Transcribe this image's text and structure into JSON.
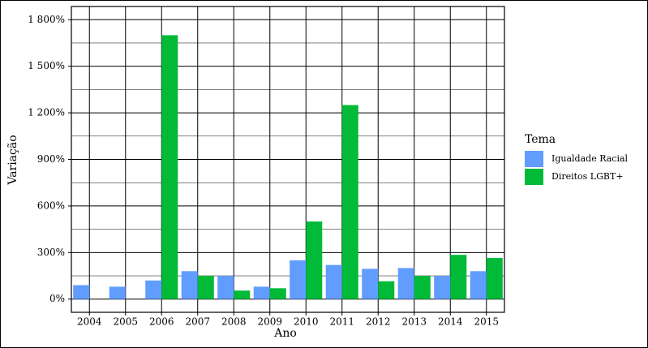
{
  "chart_data": {
    "type": "bar",
    "x_label": "Ano",
    "y_label": "Variação",
    "categories": [
      "2004",
      "2005",
      "2006",
      "2007",
      "2008",
      "2009",
      "2010",
      "2011",
      "2012",
      "2013",
      "2014",
      "2015"
    ],
    "series": [
      {
        "name": "Igualdade Racial",
        "color": "#619cff",
        "values": [
          90,
          80,
          120,
          180,
          150,
          80,
          250,
          220,
          195,
          200,
          150,
          180
        ]
      },
      {
        "name": "Direitos LGBT+",
        "color": "#00ba38",
        "values": [
          null,
          null,
          1700,
          150,
          55,
          70,
          500,
          1250,
          115,
          150,
          285,
          265
        ]
      }
    ],
    "ylim": [
      -85,
      1885
    ],
    "yticks": [
      {
        "value": 0,
        "label": "0%"
      },
      {
        "value": 300,
        "label": "300%"
      },
      {
        "value": 600,
        "label": "600%"
      },
      {
        "value": 900,
        "label": "900%"
      },
      {
        "value": 1200,
        "label": "1 200%"
      },
      {
        "value": 1500,
        "label": "1 500%"
      },
      {
        "value": 1800,
        "label": "1 800%"
      }
    ],
    "legend_title": "Tema",
    "legend_position": "right",
    "grid": true
  }
}
